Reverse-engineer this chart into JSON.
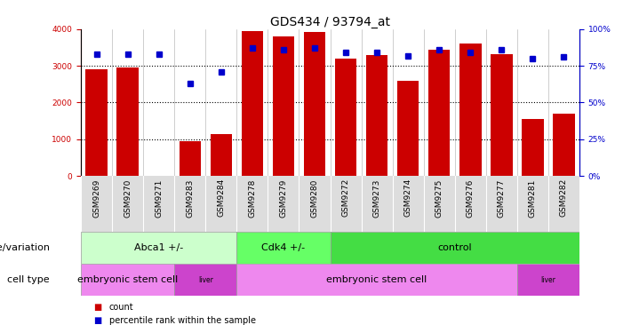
{
  "title": "GDS434 / 93794_at",
  "samples": [
    "GSM9269",
    "GSM9270",
    "GSM9271",
    "GSM9283",
    "GSM9284",
    "GSM9278",
    "GSM9279",
    "GSM9280",
    "GSM9272",
    "GSM9273",
    "GSM9274",
    "GSM9275",
    "GSM9276",
    "GSM9277",
    "GSM9281",
    "GSM9282"
  ],
  "counts": [
    2900,
    2950,
    0,
    950,
    1150,
    3950,
    3800,
    3920,
    3200,
    3300,
    2600,
    3450,
    3620,
    3320,
    1560,
    1700
  ],
  "percentiles": [
    83,
    83,
    83,
    63,
    71,
    87,
    86,
    87,
    84,
    84,
    82,
    86,
    84,
    86,
    80,
    81
  ],
  "ylim_left": [
    0,
    4000
  ],
  "ylim_right": [
    0,
    100
  ],
  "yticks_left": [
    0,
    1000,
    2000,
    3000,
    4000
  ],
  "yticks_right": [
    0,
    25,
    50,
    75,
    100
  ],
  "bar_color": "#cc0000",
  "dot_color": "#0000cc",
  "genotype_groups": [
    {
      "label": "Abca1 +/-",
      "start": 0,
      "end": 5,
      "color": "#ccffcc"
    },
    {
      "label": "Cdk4 +/-",
      "start": 5,
      "end": 8,
      "color": "#66ff66"
    },
    {
      "label": "control",
      "start": 8,
      "end": 16,
      "color": "#44dd44"
    }
  ],
  "celltype_groups": [
    {
      "label": "embryonic stem cell",
      "start": 0,
      "end": 3,
      "color": "#ee88ee"
    },
    {
      "label": "liver",
      "start": 3,
      "end": 5,
      "color": "#cc44cc"
    },
    {
      "label": "embryonic stem cell",
      "start": 5,
      "end": 14,
      "color": "#ee88ee"
    },
    {
      "label": "liver",
      "start": 14,
      "end": 16,
      "color": "#cc44cc"
    }
  ],
  "genotype_label": "genotype/variation",
  "celltype_label": "cell type",
  "legend_count": "count",
  "legend_percentile": "percentile rank within the sample",
  "title_fontsize": 10,
  "tick_fontsize": 6.5,
  "label_fontsize": 8,
  "annotation_fontsize": 8,
  "bar_width": 0.7
}
